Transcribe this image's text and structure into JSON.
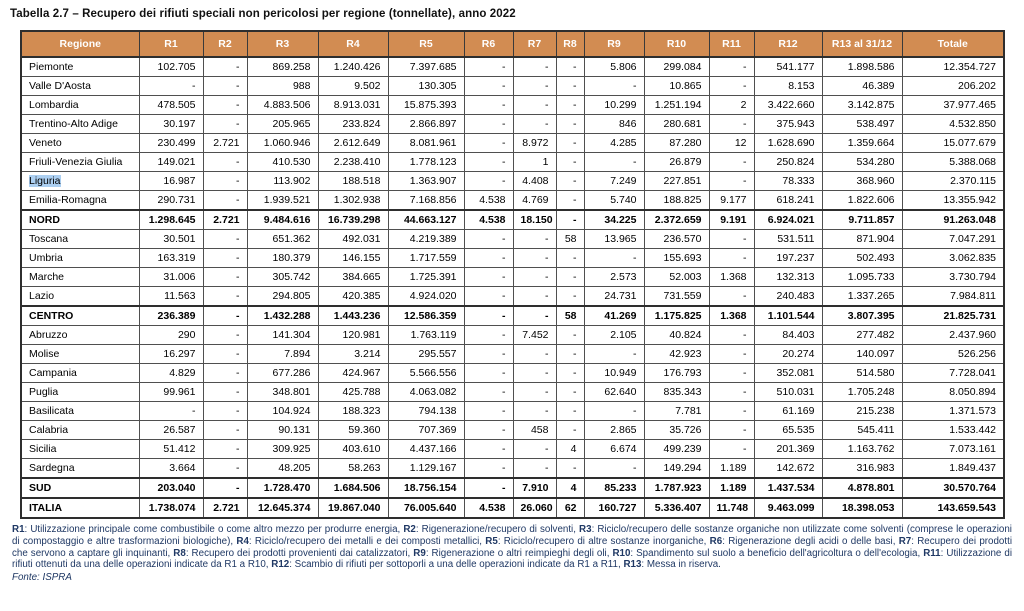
{
  "title": "Tabella 2.7 – Recupero dei rifiuti speciali non pericolosi per regione (tonnellate), anno 2022",
  "table": {
    "columns": [
      "Regione",
      "R1",
      "R2",
      "R3",
      "R4",
      "R5",
      "R6",
      "R7",
      "R8",
      "R9",
      "R10",
      "R11",
      "R12",
      "R13 al 31/12",
      "Totale"
    ],
    "rows": [
      {
        "region": "Piemonte",
        "bold": false,
        "highlight": false,
        "values": [
          "102.705",
          "-",
          "869.258",
          "1.240.426",
          "7.397.685",
          "-",
          "-",
          "-",
          "5.806",
          "299.084",
          "-",
          "541.177",
          "1.898.586",
          "12.354.727"
        ]
      },
      {
        "region": "Valle D'Aosta",
        "bold": false,
        "highlight": false,
        "values": [
          "-",
          "-",
          "988",
          "9.502",
          "130.305",
          "-",
          "-",
          "-",
          "-",
          "10.865",
          "-",
          "8.153",
          "46.389",
          "206.202"
        ]
      },
      {
        "region": "Lombardia",
        "bold": false,
        "highlight": false,
        "values": [
          "478.505",
          "-",
          "4.883.506",
          "8.913.031",
          "15.875.393",
          "-",
          "-",
          "-",
          "10.299",
          "1.251.194",
          "2",
          "3.422.660",
          "3.142.875",
          "37.977.465"
        ]
      },
      {
        "region": "Trentino-Alto Adige",
        "bold": false,
        "highlight": false,
        "values": [
          "30.197",
          "-",
          "205.965",
          "233.824",
          "2.866.897",
          "-",
          "-",
          "-",
          "846",
          "280.681",
          "-",
          "375.943",
          "538.497",
          "4.532.850"
        ]
      },
      {
        "region": "Veneto",
        "bold": false,
        "highlight": false,
        "values": [
          "230.499",
          "2.721",
          "1.060.946",
          "2.612.649",
          "8.081.961",
          "-",
          "8.972",
          "-",
          "4.285",
          "87.280",
          "12",
          "1.628.690",
          "1.359.664",
          "15.077.679"
        ]
      },
      {
        "region": "Friuli-Venezia Giulia",
        "bold": false,
        "highlight": false,
        "values": [
          "149.021",
          "-",
          "410.530",
          "2.238.410",
          "1.778.123",
          "-",
          "1",
          "-",
          "-",
          "26.879",
          "-",
          "250.824",
          "534.280",
          "5.388.068"
        ]
      },
      {
        "region": "Liguria",
        "bold": false,
        "highlight": true,
        "values": [
          "16.987",
          "-",
          "113.902",
          "188.518",
          "1.363.907",
          "-",
          "4.408",
          "-",
          "7.249",
          "227.851",
          "-",
          "78.333",
          "368.960",
          "2.370.115"
        ]
      },
      {
        "region": "Emilia-Romagna",
        "bold": false,
        "highlight": false,
        "values": [
          "290.731",
          "-",
          "1.939.521",
          "1.302.938",
          "7.168.856",
          "4.538",
          "4.769",
          "-",
          "5.740",
          "188.825",
          "9.177",
          "618.241",
          "1.822.606",
          "13.355.942"
        ]
      },
      {
        "region": "NORD",
        "bold": true,
        "highlight": false,
        "values": [
          "1.298.645",
          "2.721",
          "9.484.616",
          "16.739.298",
          "44.663.127",
          "4.538",
          "18.150",
          "-",
          "34.225",
          "2.372.659",
          "9.191",
          "6.924.021",
          "9.711.857",
          "91.263.048"
        ]
      },
      {
        "region": "Toscana",
        "bold": false,
        "highlight": false,
        "values": [
          "30.501",
          "-",
          "651.362",
          "492.031",
          "4.219.389",
          "-",
          "-",
          "58",
          "13.965",
          "236.570",
          "-",
          "531.511",
          "871.904",
          "7.047.291"
        ]
      },
      {
        "region": "Umbria",
        "bold": false,
        "highlight": false,
        "values": [
          "163.319",
          "-",
          "180.379",
          "146.155",
          "1.717.559",
          "-",
          "-",
          "-",
          "-",
          "155.693",
          "-",
          "197.237",
          "502.493",
          "3.062.835"
        ]
      },
      {
        "region": "Marche",
        "bold": false,
        "highlight": false,
        "values": [
          "31.006",
          "-",
          "305.742",
          "384.665",
          "1.725.391",
          "-",
          "-",
          "-",
          "2.573",
          "52.003",
          "1.368",
          "132.313",
          "1.095.733",
          "3.730.794"
        ]
      },
      {
        "region": "Lazio",
        "bold": false,
        "highlight": false,
        "values": [
          "11.563",
          "-",
          "294.805",
          "420.385",
          "4.924.020",
          "-",
          "-",
          "-",
          "24.731",
          "731.559",
          "-",
          "240.483",
          "1.337.265",
          "7.984.811"
        ]
      },
      {
        "region": "CENTRO",
        "bold": true,
        "highlight": false,
        "values": [
          "236.389",
          "-",
          "1.432.288",
          "1.443.236",
          "12.586.359",
          "-",
          "-",
          "58",
          "41.269",
          "1.175.825",
          "1.368",
          "1.101.544",
          "3.807.395",
          "21.825.731"
        ]
      },
      {
        "region": "Abruzzo",
        "bold": false,
        "highlight": false,
        "values": [
          "290",
          "-",
          "141.304",
          "120.981",
          "1.763.119",
          "-",
          "7.452",
          "-",
          "2.105",
          "40.824",
          "-",
          "84.403",
          "277.482",
          "2.437.960"
        ]
      },
      {
        "region": "Molise",
        "bold": false,
        "highlight": false,
        "values": [
          "16.297",
          "-",
          "7.894",
          "3.214",
          "295.557",
          "-",
          "-",
          "-",
          "-",
          "42.923",
          "-",
          "20.274",
          "140.097",
          "526.256"
        ]
      },
      {
        "region": "Campania",
        "bold": false,
        "highlight": false,
        "values": [
          "4.829",
          "-",
          "677.286",
          "424.967",
          "5.566.556",
          "-",
          "-",
          "-",
          "10.949",
          "176.793",
          "-",
          "352.081",
          "514.580",
          "7.728.041"
        ]
      },
      {
        "region": "Puglia",
        "bold": false,
        "highlight": false,
        "values": [
          "99.961",
          "-",
          "348.801",
          "425.788",
          "4.063.082",
          "-",
          "-",
          "-",
          "62.640",
          "835.343",
          "-",
          "510.031",
          "1.705.248",
          "8.050.894"
        ]
      },
      {
        "region": "Basilicata",
        "bold": false,
        "highlight": false,
        "values": [
          "-",
          "-",
          "104.924",
          "188.323",
          "794.138",
          "-",
          "-",
          "-",
          "-",
          "7.781",
          "-",
          "61.169",
          "215.238",
          "1.371.573"
        ]
      },
      {
        "region": "Calabria",
        "bold": false,
        "highlight": false,
        "values": [
          "26.587",
          "-",
          "90.131",
          "59.360",
          "707.369",
          "-",
          "458",
          "-",
          "2.865",
          "35.726",
          "-",
          "65.535",
          "545.411",
          "1.533.442"
        ]
      },
      {
        "region": "Sicilia",
        "bold": false,
        "highlight": false,
        "values": [
          "51.412",
          "-",
          "309.925",
          "403.610",
          "4.437.166",
          "-",
          "-",
          "4",
          "6.674",
          "499.239",
          "-",
          "201.369",
          "1.163.762",
          "7.073.161"
        ]
      },
      {
        "region": "Sardegna",
        "bold": false,
        "highlight": false,
        "values": [
          "3.664",
          "-",
          "48.205",
          "58.263",
          "1.129.167",
          "-",
          "-",
          "-",
          "-",
          "149.294",
          "1.189",
          "142.672",
          "316.983",
          "1.849.437"
        ]
      },
      {
        "region": "SUD",
        "bold": true,
        "highlight": false,
        "values": [
          "203.040",
          "-",
          "1.728.470",
          "1.684.506",
          "18.756.154",
          "-",
          "7.910",
          "4",
          "85.233",
          "1.787.923",
          "1.189",
          "1.437.534",
          "4.878.801",
          "30.570.764"
        ]
      },
      {
        "region": "ITALIA",
        "bold": true,
        "highlight": false,
        "values": [
          "1.738.074",
          "2.721",
          "12.645.374",
          "19.867.040",
          "76.005.640",
          "4.538",
          "26.060",
          "62",
          "160.727",
          "5.336.407",
          "11.748",
          "9.463.099",
          "18.398.053",
          "143.659.543"
        ]
      }
    ]
  },
  "footnote": {
    "segments": [
      {
        "b": "R1"
      },
      {
        "t": ": Utilizzazione principale come combustibile o come altro mezzo per produrre energia, "
      },
      {
        "b": "R2"
      },
      {
        "t": ": Rigenerazione/recupero di solventi, "
      },
      {
        "b": "R3"
      },
      {
        "t": ": Riciclo/recupero delle sostanze organiche non utilizzate come solventi (comprese le operazioni di compostaggio e altre trasformazioni biologiche), "
      },
      {
        "b": "R4"
      },
      {
        "t": ": Riciclo/recupero dei metalli e dei composti metallici, "
      },
      {
        "b": "R5"
      },
      {
        "t": ": Riciclo/recupero di altre sostanze inorganiche, "
      },
      {
        "b": "R6"
      },
      {
        "t": ": Rigenerazione degli acidi o delle basi, "
      },
      {
        "b": "R7"
      },
      {
        "t": ": Recupero dei prodotti che servono a captare gli inquinanti, "
      },
      {
        "b": "R8"
      },
      {
        "t": ": Recupero dei prodotti provenienti dai catalizzatori, "
      },
      {
        "b": "R9"
      },
      {
        "t": ": Rigenerazione o altri reimpieghi degli oli, "
      },
      {
        "b": "R10"
      },
      {
        "t": ": Spandimento sul suolo a beneficio dell'agricoltura o dell'ecologia, "
      },
      {
        "b": "R11"
      },
      {
        "t": ": Utilizzazione di rifiuti ottenuti da una delle operazioni indicate da R1 a R10, "
      },
      {
        "b": "R12"
      },
      {
        "t": ": Scambio di rifiuti per sottoporli a una delle operazioni indicate da R1 a R11, "
      },
      {
        "b": "R13"
      },
      {
        "t": ": Messa in riserva."
      }
    ],
    "fonte": "Fonte: ISPRA"
  },
  "colors": {
    "header_bg": "#D28C52",
    "header_text": "#FFFFFF",
    "note_text": "#1F3864",
    "selection_highlight": "#ACCFF1"
  }
}
